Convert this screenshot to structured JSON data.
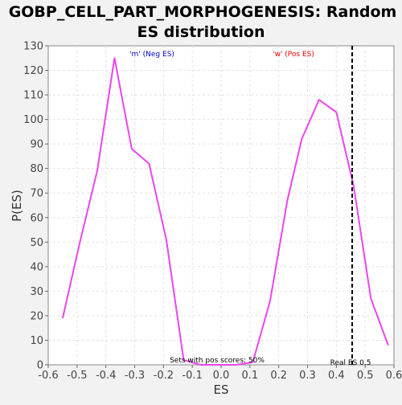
{
  "chart_data": {
    "type": "line",
    "title_line1": "GOBP_CELL_PART_MORPHOGENESIS: Random",
    "title_line2": "ES distribution",
    "xlabel": "ES",
    "ylabel": "P(ES)",
    "xlim": [
      -0.6,
      0.6
    ],
    "ylim": [
      0,
      130
    ],
    "xticks": [
      -0.6,
      -0.5,
      -0.4,
      -0.3,
      -0.2,
      -0.1,
      0.0,
      0.1,
      0.2,
      0.3,
      0.4,
      0.5,
      0.6
    ],
    "xtick_labels": [
      "-0.6",
      "-0.5",
      "-0.4",
      "-0.3",
      "-0.2",
      "-0.1",
      "0.0",
      "0.1",
      "0.2",
      "0.3",
      "0.4",
      "0.5",
      "0.6"
    ],
    "yticks": [
      0,
      10,
      20,
      30,
      40,
      50,
      60,
      70,
      80,
      90,
      100,
      110,
      120,
      130
    ],
    "grid": true,
    "series": [
      {
        "color": "#ee44ee",
        "x": [
          -0.55,
          -0.49,
          -0.43,
          -0.37,
          -0.31,
          -0.25,
          -0.19,
          -0.13,
          -0.07,
          -0.01,
          0.05,
          0.11,
          0.17,
          0.23,
          0.28,
          0.34,
          0.4,
          0.46,
          0.52,
          0.58
        ],
        "y": [
          19,
          50,
          79,
          125,
          88,
          82,
          51,
          2,
          0,
          0,
          0,
          1,
          26,
          67,
          92,
          108,
          103,
          73,
          27,
          8
        ]
      }
    ],
    "real_es": 0.455,
    "legend_neg": {
      "text": "'m' (Neg ES)",
      "color": "#0000cc"
    },
    "legend_pos": {
      "text": "'w' (Pos ES)",
      "color": "#ee0000"
    },
    "annotation_pos_scores": "Sets with pos scores: 50%",
    "annotation_real_es": "Real ES 0.5"
  }
}
